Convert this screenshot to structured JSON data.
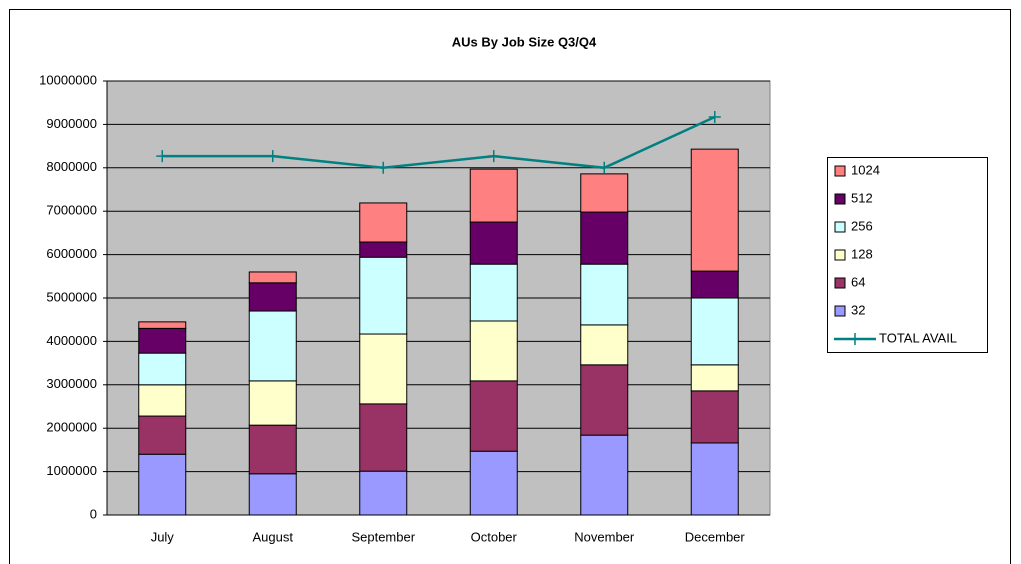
{
  "chart_data": {
    "type": "bar",
    "stacked": true,
    "title": "AUs By Job Size Q3/Q4",
    "categories": [
      "July",
      "August",
      "September",
      "October",
      "November",
      "December"
    ],
    "series": [
      {
        "name": "32",
        "color": "#9999ff",
        "values": [
          1400000,
          950000,
          1010000,
          1470000,
          1840000,
          1660000
        ]
      },
      {
        "name": "64",
        "color": "#993366",
        "values": [
          880000,
          1120000,
          1550000,
          1620000,
          1620000,
          1200000
        ]
      },
      {
        "name": "128",
        "color": "#ffffcc",
        "values": [
          720000,
          1020000,
          1610000,
          1380000,
          920000,
          600000
        ]
      },
      {
        "name": "256",
        "color": "#ccffff",
        "values": [
          730000,
          1610000,
          1770000,
          1310000,
          1400000,
          1540000
        ]
      },
      {
        "name": "512",
        "color": "#660066",
        "values": [
          570000,
          650000,
          350000,
          970000,
          1200000,
          620000
        ]
      },
      {
        "name": "1024",
        "color": "#ff8080",
        "values": [
          150000,
          250000,
          900000,
          1220000,
          880000,
          2810000
        ]
      },
      {
        "name": "TOTAL AVAIL",
        "color": "#008080",
        "type": "line",
        "values": [
          8270000,
          8270000,
          8000000,
          8270000,
          8000000,
          9170000
        ]
      }
    ],
    "ylim": [
      0,
      10000000
    ],
    "yticks": [
      0,
      1000000,
      2000000,
      3000000,
      4000000,
      5000000,
      6000000,
      7000000,
      8000000,
      9000000,
      10000000
    ],
    "grid": true,
    "legend": "right"
  }
}
